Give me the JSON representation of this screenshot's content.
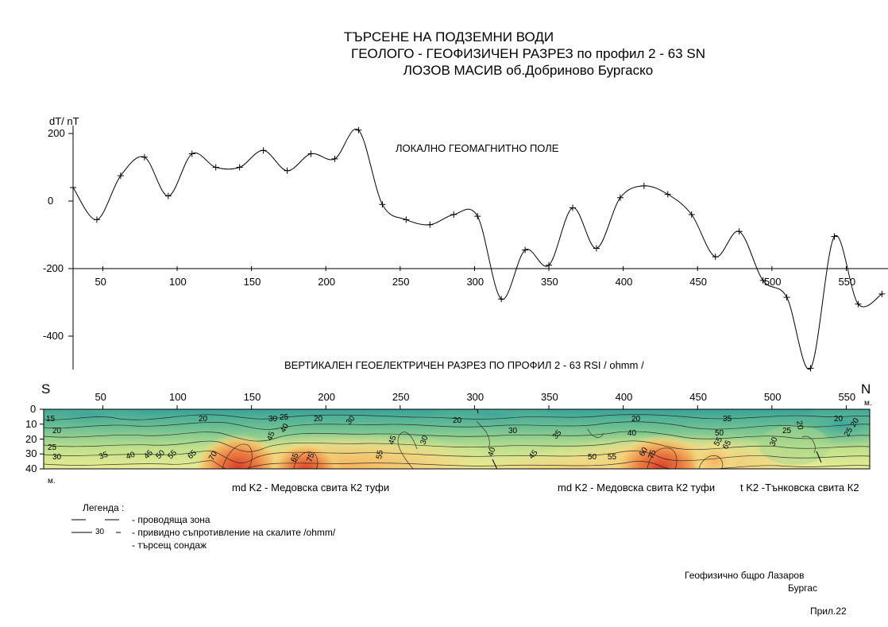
{
  "titles": {
    "line1": "ТЪРСЕНЕ НА ПОДЗЕМНИ ВОДИ",
    "line2": "ГЕОЛОГО - ГЕОФИЗИЧЕН РАЗРЕЗ по профил 2 - 63 SN",
    "line3": "ЛОЗОВ МАСИВ об.Добриново  Бургаско"
  },
  "chart_data": [
    {
      "type": "line",
      "title": "ЛОКАЛНО ГЕОМАГНИТНО ПОЛЕ",
      "ylabel": "dT/ nT",
      "xlim": [
        30,
        580
      ],
      "ylim": [
        -500,
        230
      ],
      "y_ticks": [
        200,
        0,
        -200,
        -400
      ],
      "x_ticks": [
        50,
        100,
        150,
        200,
        250,
        300,
        350,
        400,
        450,
        500,
        550
      ],
      "grid": false,
      "series": [
        {
          "x": [
            30,
            46,
            62,
            78,
            94,
            110,
            126,
            142,
            158,
            174,
            190,
            206,
            222,
            238,
            254,
            270,
            286,
            302,
            318,
            334,
            350,
            366,
            382,
            398,
            414,
            430,
            446,
            462,
            478,
            494,
            510,
            526,
            542,
            558,
            574
          ],
          "values": [
            40,
            -55,
            75,
            130,
            15,
            140,
            100,
            100,
            150,
            90,
            140,
            125,
            210,
            -10,
            -55,
            -70,
            -40,
            -45,
            -290,
            -145,
            -190,
            -20,
            -140,
            10,
            45,
            20,
            -40,
            -165,
            -90,
            -235,
            -285,
            -495,
            -105,
            -305,
            -275
          ]
        }
      ]
    },
    {
      "type": "heatmap",
      "title": "ВЕРТИКАЛЕН ГЕОЕЛЕКТРИЧЕН РАЗРЕЗ  ПО ПРОФИЛ 2 - 63  RSI  / ohmm /",
      "xlim": [
        30,
        580
      ],
      "ylim": [
        0,
        40
      ],
      "y_unit": "м.",
      "x_unit": "м.",
      "y_ticks": [
        0,
        10,
        20,
        30,
        40
      ],
      "x_ticks": [
        50,
        100,
        150,
        200,
        250,
        300,
        350,
        400,
        450,
        500,
        550
      ],
      "left_label": "S",
      "right_label": "N",
      "colors": [
        "#3aa39a",
        "#66bd93",
        "#a5d58c",
        "#d9ea8f",
        "#f5e08a",
        "#f4b663",
        "#ee8443",
        "#e0552e"
      ],
      "contour_labels": [
        "15",
        "20",
        "25",
        "30",
        "35",
        "40",
        "45",
        "50",
        "55",
        "60",
        "65",
        "70",
        "75"
      ],
      "formations": [
        "md K2 - Медовска  свита  К2   туфи",
        "md K2 - Медовска  свита  К2   туфи",
        "t K2  -Тънковска свита К2"
      ]
    }
  ],
  "legend": {
    "title": "Легенда :",
    "items": [
      "- проводяща  зона",
      "- привидно  съпротивление на скалите  /ohmm/",
      "- търсещ сондаж"
    ],
    "contour_sample": "30"
  },
  "footer": {
    "org": "Геофизично  бщро  Лазаров",
    "city": "Бургас",
    "appendix": "Прил.22"
  }
}
